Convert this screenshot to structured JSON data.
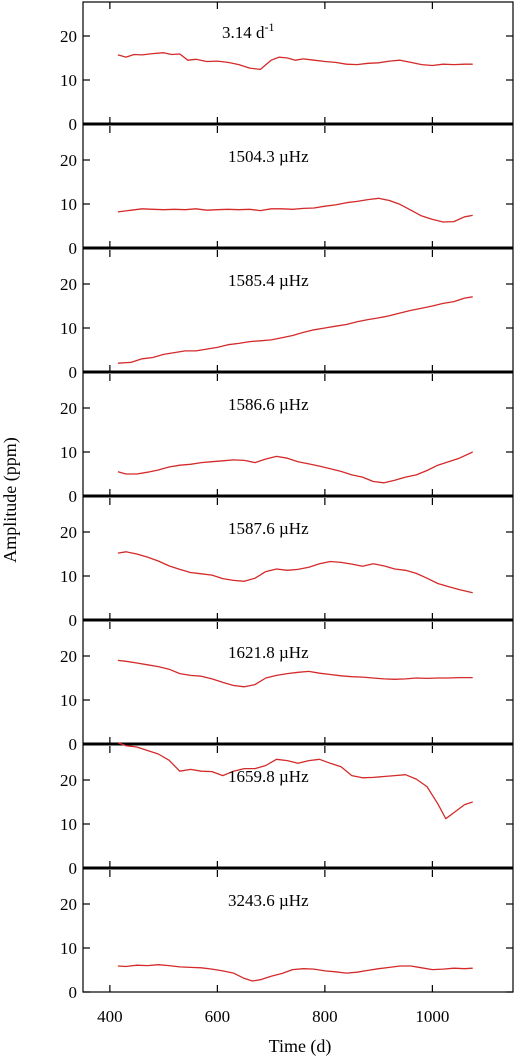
{
  "chart_data": {
    "type": "line",
    "xlabel": "Time (d)",
    "ylabel": "Amplitude (ppm)",
    "xlim": [
      350,
      1150
    ],
    "xticks": [
      400,
      600,
      800,
      1000
    ],
    "line_color": "#d42a2a",
    "grid": false,
    "panels": [
      {
        "label": "3.14 d",
        "label_sup": "-1",
        "ylim": [
          0,
          25
        ],
        "yticks": [
          0,
          10,
          20
        ],
        "x": [
          415,
          430,
          445,
          460,
          480,
          500,
          515,
          530,
          545,
          560,
          580,
          600,
          620,
          640,
          660,
          680,
          700,
          715,
          730,
          745,
          760,
          780,
          800,
          820,
          840,
          860,
          880,
          900,
          920,
          940,
          960,
          980,
          1000,
          1020,
          1040,
          1060,
          1075
        ],
        "values": [
          15.7,
          15.2,
          15.8,
          15.7,
          16,
          16.2,
          15.8,
          15.9,
          14.5,
          14.7,
          14.2,
          14.3,
          14,
          13.5,
          12.7,
          12.4,
          14.5,
          15.2,
          15,
          14.5,
          14.8,
          14.5,
          14.2,
          14,
          13.6,
          13.5,
          13.8,
          13.9,
          14.3,
          14.5,
          14,
          13.5,
          13.3,
          13.6,
          13.5,
          13.6,
          13.6
        ]
      },
      {
        "label": "1504.3 µHz",
        "ylim": [
          0,
          25
        ],
        "yticks": [
          0,
          10,
          20
        ],
        "x": [
          415,
          440,
          460,
          480,
          500,
          520,
          540,
          560,
          580,
          600,
          620,
          640,
          660,
          680,
          700,
          720,
          740,
          760,
          780,
          800,
          820,
          840,
          860,
          880,
          900,
          920,
          940,
          960,
          980,
          1000,
          1020,
          1040,
          1060,
          1075
        ],
        "values": [
          8.2,
          8.6,
          8.9,
          8.8,
          8.7,
          8.8,
          8.7,
          8.9,
          8.6,
          8.7,
          8.8,
          8.7,
          8.8,
          8.5,
          8.9,
          8.9,
          8.8,
          9,
          9.1,
          9.5,
          9.8,
          10.3,
          10.6,
          11,
          11.3,
          10.8,
          9.9,
          8.6,
          7.3,
          6.5,
          5.9,
          6,
          7.1,
          7.4
        ]
      },
      {
        "label": "1585.4 µHz",
        "ylim": [
          0,
          25
        ],
        "yticks": [
          0,
          10,
          20
        ],
        "x": [
          415,
          440,
          460,
          480,
          500,
          520,
          540,
          560,
          580,
          600,
          620,
          640,
          660,
          680,
          700,
          720,
          740,
          760,
          780,
          800,
          820,
          840,
          860,
          880,
          900,
          920,
          940,
          960,
          980,
          1000,
          1020,
          1040,
          1060,
          1075
        ],
        "values": [
          2,
          2.2,
          3,
          3.3,
          4,
          4.4,
          4.8,
          4.8,
          5.2,
          5.6,
          6.2,
          6.5,
          6.9,
          7.1,
          7.3,
          7.8,
          8.3,
          9,
          9.6,
          10,
          10.4,
          10.8,
          11.4,
          11.9,
          12.3,
          12.8,
          13.4,
          14,
          14.5,
          15,
          15.6,
          16,
          16.8,
          17.1
        ]
      },
      {
        "label": "1586.6 µHz",
        "ylim": [
          0,
          25
        ],
        "yticks": [
          0,
          10,
          20
        ],
        "x": [
          415,
          430,
          450,
          470,
          490,
          510,
          530,
          550,
          570,
          590,
          610,
          630,
          650,
          670,
          690,
          710,
          730,
          750,
          770,
          790,
          810,
          830,
          850,
          870,
          890,
          910,
          930,
          950,
          970,
          990,
          1010,
          1030,
          1050,
          1075
        ],
        "values": [
          5.5,
          5,
          5,
          5.4,
          5.9,
          6.6,
          7,
          7.2,
          7.6,
          7.8,
          8,
          8.2,
          8.1,
          7.6,
          8.4,
          9,
          8.6,
          7.8,
          7.3,
          6.8,
          6.2,
          5.6,
          4.8,
          4.3,
          3.3,
          3,
          3.6,
          4.3,
          4.8,
          5.8,
          7,
          7.8,
          8.6,
          10
        ]
      },
      {
        "label": "1587.6 µHz",
        "ylim": [
          0,
          25
        ],
        "yticks": [
          0,
          10,
          20
        ],
        "x": [
          415,
          430,
          450,
          470,
          490,
          510,
          530,
          550,
          570,
          590,
          610,
          630,
          650,
          670,
          690,
          710,
          730,
          750,
          770,
          790,
          810,
          830,
          850,
          870,
          890,
          910,
          930,
          950,
          970,
          990,
          1010,
          1030,
          1050,
          1075
        ],
        "values": [
          15.2,
          15.5,
          15,
          14.3,
          13.4,
          12.3,
          11.5,
          10.8,
          10.5,
          10.2,
          9.4,
          9,
          8.8,
          9.5,
          11,
          11.6,
          11.3,
          11.5,
          12,
          12.8,
          13.3,
          13.1,
          12.7,
          12.2,
          12.8,
          12.3,
          11.6,
          11.3,
          10.6,
          9.5,
          8.3,
          7.6,
          6.9,
          6.2
        ]
      },
      {
        "label": "1621.8 µHz",
        "ylim": [
          0,
          25
        ],
        "yticks": [
          0,
          10,
          20
        ],
        "x": [
          415,
          430,
          450,
          470,
          490,
          510,
          530,
          550,
          570,
          590,
          610,
          630,
          650,
          670,
          690,
          710,
          730,
          750,
          770,
          790,
          810,
          830,
          850,
          870,
          890,
          910,
          930,
          950,
          970,
          990,
          1010,
          1030,
          1050,
          1075
        ],
        "values": [
          19,
          18.8,
          18.4,
          18,
          17.6,
          17,
          16,
          15.6,
          15.4,
          14.8,
          14,
          13.3,
          13,
          13.5,
          15,
          15.6,
          16,
          16.3,
          16.5,
          16.1,
          15.8,
          15.5,
          15.3,
          15.2,
          15,
          14.8,
          14.7,
          14.8,
          15,
          14.9,
          15,
          15,
          15.1,
          15.1
        ]
      },
      {
        "label": "1659.8 µHz",
        "ylim": [
          0,
          30
        ],
        "yticks": [
          0,
          10,
          20
        ],
        "x": [
          415,
          430,
          450,
          470,
          490,
          510,
          530,
          550,
          570,
          590,
          610,
          630,
          650,
          670,
          690,
          710,
          730,
          750,
          770,
          790,
          810,
          830,
          850,
          870,
          890,
          910,
          930,
          950,
          970,
          990,
          1010,
          1025,
          1040,
          1060,
          1075
        ],
        "values": [
          28.5,
          27.8,
          27.5,
          26.7,
          25.9,
          24.5,
          22,
          22.4,
          22,
          21.9,
          21,
          22,
          22.6,
          22.6,
          23.3,
          24.7,
          24.4,
          23.8,
          24.4,
          24.7,
          23.8,
          23,
          21,
          20.5,
          20.6,
          20.8,
          21,
          21.2,
          20.2,
          18.5,
          14.6,
          11.2,
          12.6,
          14.4,
          15
        ]
      },
      {
        "label": "3243.6 µHz",
        "ylim": [
          0,
          25
        ],
        "yticks": [
          0,
          10,
          20
        ],
        "x": [
          415,
          430,
          450,
          470,
          490,
          510,
          530,
          550,
          570,
          590,
          610,
          630,
          650,
          665,
          680,
          700,
          720,
          740,
          760,
          780,
          800,
          820,
          840,
          860,
          880,
          900,
          920,
          940,
          960,
          980,
          1000,
          1020,
          1040,
          1060,
          1075
        ],
        "values": [
          5.9,
          5.8,
          6.1,
          6,
          6.2,
          6,
          5.7,
          5.6,
          5.5,
          5.2,
          4.8,
          4.3,
          3.1,
          2.5,
          2.8,
          3.6,
          4.2,
          5.1,
          5.3,
          5.2,
          4.8,
          4.6,
          4.3,
          4.5,
          4.9,
          5.3,
          5.6,
          5.9,
          5.9,
          5.5,
          5.1,
          5.2,
          5.4,
          5.3,
          5.4
        ]
      }
    ]
  }
}
